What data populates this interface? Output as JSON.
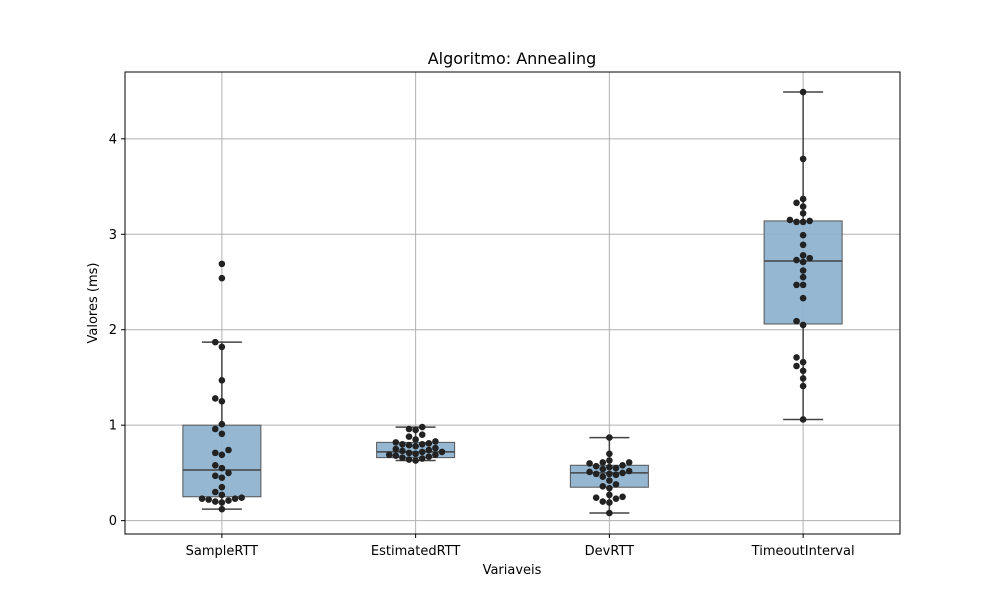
{
  "chart_data": {
    "type": "box",
    "title": "Algoritmo: Annealing",
    "xlabel": "Variaveis",
    "ylabel": "Valores (ms)",
    "ylim": [
      -0.14,
      4.7
    ],
    "yticks": [
      0,
      1,
      2,
      3,
      4
    ],
    "grid": true,
    "colors": {
      "box_fill": "#8fb3d0",
      "box_edge": "#555555",
      "point": "#222222",
      "grid": "#b0b0b0"
    },
    "categories": [
      "SampleRTT",
      "EstimatedRTT",
      "DevRTT",
      "TimeoutInterval"
    ],
    "boxes": [
      {
        "whisker_low": 0.12,
        "q1": 0.25,
        "median": 0.53,
        "q3": 1.0,
        "whisker_high": 1.87
      },
      {
        "whisker_low": 0.63,
        "q1": 0.66,
        "median": 0.72,
        "q3": 0.82,
        "whisker_high": 0.98
      },
      {
        "whisker_low": 0.08,
        "q1": 0.35,
        "median": 0.5,
        "q3": 0.58,
        "whisker_high": 0.87
      },
      {
        "whisker_low": 1.06,
        "q1": 2.06,
        "median": 2.72,
        "q3": 3.14,
        "whisker_high": 4.49
      }
    ],
    "points": [
      [
        2.69,
        2.54,
        1.87,
        1.82,
        1.47,
        1.28,
        1.25,
        1.01,
        0.96,
        0.91,
        0.74,
        0.71,
        0.69,
        0.58,
        0.55,
        0.5,
        0.47,
        0.45,
        0.35,
        0.3,
        0.27,
        0.24,
        0.23,
        0.23,
        0.22,
        0.21,
        0.2,
        0.19,
        0.12
      ],
      [
        0.98,
        0.96,
        0.95,
        0.9,
        0.88,
        0.85,
        0.83,
        0.82,
        0.81,
        0.8,
        0.8,
        0.79,
        0.78,
        0.76,
        0.75,
        0.74,
        0.73,
        0.72,
        0.72,
        0.71,
        0.7,
        0.69,
        0.69,
        0.68,
        0.67,
        0.66,
        0.65,
        0.64,
        0.63
      ],
      [
        0.87,
        0.7,
        0.63,
        0.61,
        0.61,
        0.6,
        0.58,
        0.57,
        0.56,
        0.55,
        0.54,
        0.52,
        0.51,
        0.5,
        0.49,
        0.49,
        0.48,
        0.46,
        0.42,
        0.38,
        0.36,
        0.34,
        0.27,
        0.25,
        0.24,
        0.23,
        0.2,
        0.19,
        0.08
      ],
      [
        4.49,
        3.79,
        3.37,
        3.33,
        3.29,
        3.22,
        3.15,
        3.14,
        3.13,
        3.13,
        2.99,
        2.89,
        2.78,
        2.75,
        2.73,
        2.71,
        2.62,
        2.55,
        2.47,
        2.47,
        2.33,
        2.09,
        2.05,
        1.71,
        1.66,
        1.62,
        1.57,
        1.49,
        1.41,
        1.06
      ]
    ]
  }
}
